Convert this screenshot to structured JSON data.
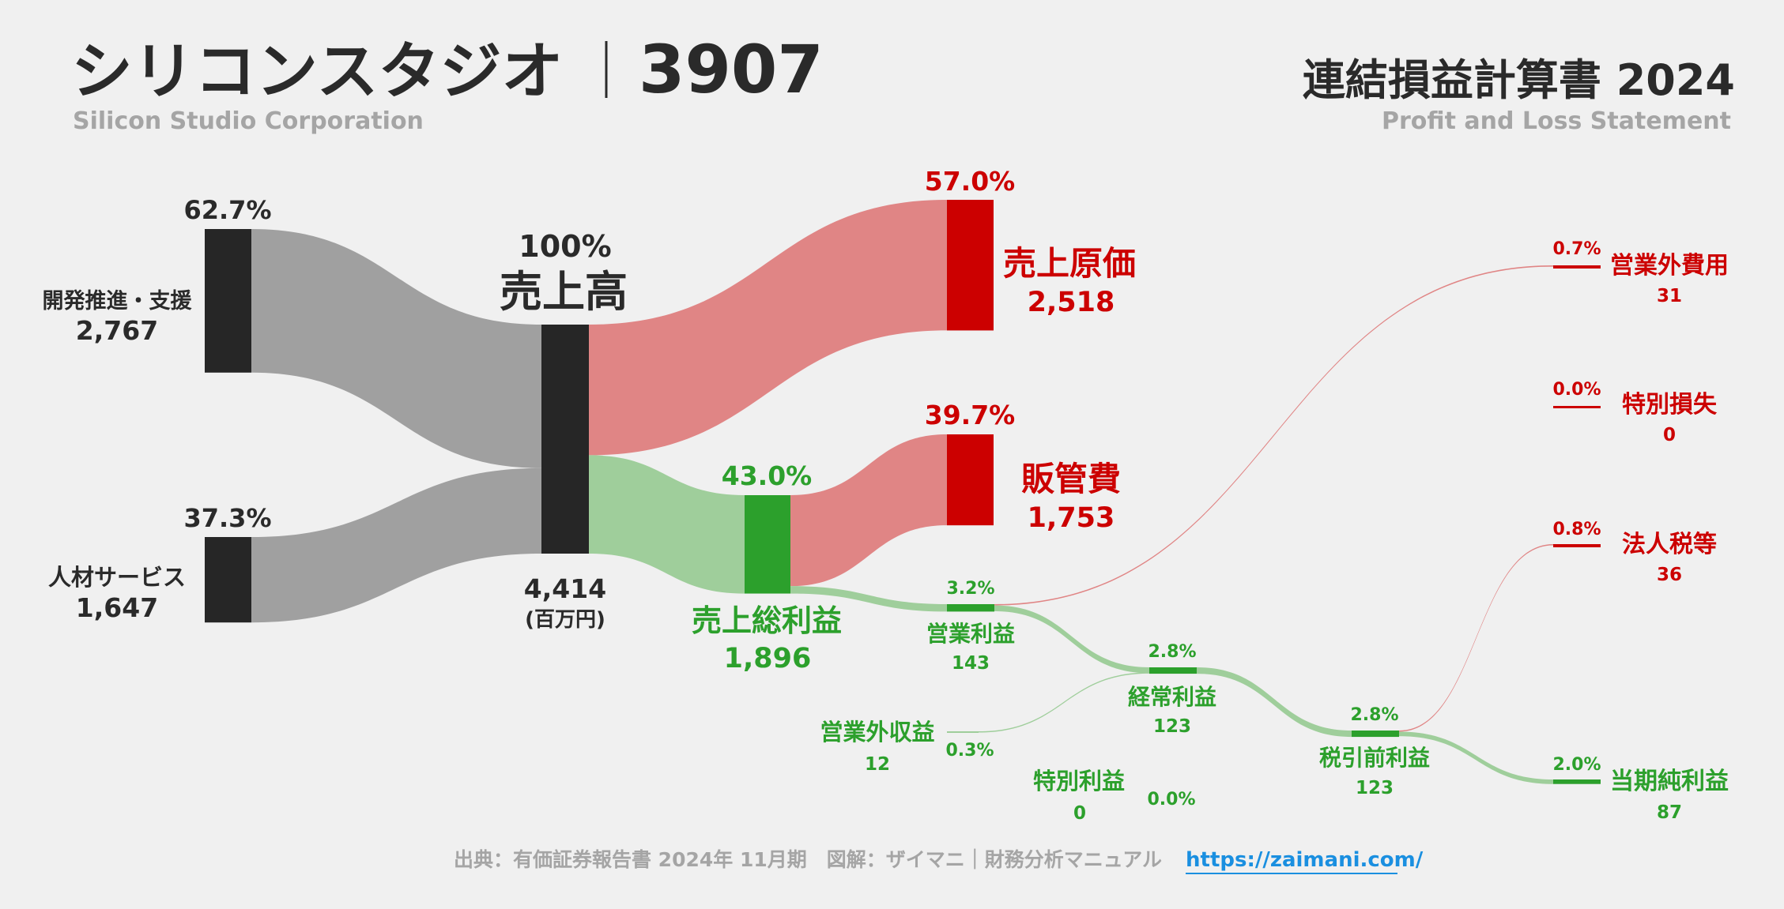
{
  "header": {
    "company_jp": "シリコンスタジオ",
    "separator": "|",
    "ticker": "3907",
    "company_en": "Silicon Studio Corporation",
    "statement_jp": "連結損益計算書 2024",
    "statement_en": "Profit and Loss Statement"
  },
  "footer": {
    "source": "出典：有価証券報告書 2024年 11月期　図解：ザイマニ｜財務分析マニュアル",
    "url": "https://zaimani.com/"
  },
  "colors": {
    "background": "#f0f0f0",
    "node_dark": "#262626",
    "flow_gray": "#a0a0a0",
    "cost_red": "#cc0000",
    "cost_flow": "#e08585",
    "profit_green": "#2ca02c",
    "profit_flow": "#9fce9b",
    "title_text": "#2a2a2a",
    "subtitle_text": "#a5a5a5",
    "link_blue": "#1a8fe0"
  },
  "chart_data": {
    "type": "sankey",
    "title": "連結損益計算書 2024",
    "unit": "(百万円)",
    "nodes": [
      {
        "id": "seg1",
        "label": "開発推進・支援",
        "value": 2767,
        "value_text": "2,767",
        "pct": "62.7%",
        "kind": "segment"
      },
      {
        "id": "seg2",
        "label": "人材サービス",
        "value": 1647,
        "value_text": "1,647",
        "pct": "37.3%",
        "kind": "segment"
      },
      {
        "id": "revenue",
        "label": "売上高",
        "value": 4414,
        "value_text": "4,414",
        "pct": "100%",
        "kind": "total"
      },
      {
        "id": "cogs",
        "label": "売上原価",
        "value": 2518,
        "value_text": "2,518",
        "pct": "57.0%",
        "kind": "cost"
      },
      {
        "id": "gross",
        "label": "売上総利益",
        "value": 1896,
        "value_text": "1,896",
        "pct": "43.0%",
        "kind": "profit"
      },
      {
        "id": "sga",
        "label": "販管費",
        "value": 1753,
        "value_text": "1,753",
        "pct": "39.7%",
        "kind": "cost"
      },
      {
        "id": "op",
        "label": "営業利益",
        "value": 143,
        "value_text": "143",
        "pct": "3.2%",
        "kind": "profit"
      },
      {
        "id": "nonop_inc",
        "label": "営業外収益",
        "value": 12,
        "value_text": "12",
        "pct": "0.3%",
        "kind": "profit"
      },
      {
        "id": "nonop_exp",
        "label": "営業外費用",
        "value": 31,
        "value_text": "31",
        "pct": "0.7%",
        "kind": "cost"
      },
      {
        "id": "ord",
        "label": "経常利益",
        "value": 123,
        "value_text": "123",
        "pct": "2.8%",
        "kind": "profit"
      },
      {
        "id": "ext_gain",
        "label": "特別利益",
        "value": 0,
        "value_text": "0",
        "pct": "0.0%",
        "kind": "profit"
      },
      {
        "id": "ext_loss",
        "label": "特別損失",
        "value": 0,
        "value_text": "0",
        "pct": "0.0%",
        "kind": "cost"
      },
      {
        "id": "pretax",
        "label": "税引前利益",
        "value": 123,
        "value_text": "123",
        "pct": "2.8%",
        "kind": "profit"
      },
      {
        "id": "tax",
        "label": "法人税等",
        "value": 36,
        "value_text": "36",
        "pct": "0.8%",
        "kind": "cost"
      },
      {
        "id": "net",
        "label": "当期純利益",
        "value": 87,
        "value_text": "87",
        "pct": "2.0%",
        "kind": "profit"
      }
    ],
    "links": [
      {
        "source": "seg1",
        "target": "revenue",
        "value": 2767
      },
      {
        "source": "seg2",
        "target": "revenue",
        "value": 1647
      },
      {
        "source": "revenue",
        "target": "cogs",
        "value": 2518
      },
      {
        "source": "revenue",
        "target": "gross",
        "value": 1896
      },
      {
        "source": "gross",
        "target": "sga",
        "value": 1753
      },
      {
        "source": "gross",
        "target": "op",
        "value": 143
      },
      {
        "source": "op",
        "target": "nonop_exp",
        "value": 31
      },
      {
        "source": "op",
        "target": "ord",
        "value": 112
      },
      {
        "source": "nonop_inc",
        "target": "ord",
        "value": 12
      },
      {
        "source": "ord",
        "target": "pretax",
        "value": 123
      },
      {
        "source": "pretax",
        "target": "tax",
        "value": 36
      },
      {
        "source": "pretax",
        "target": "net",
        "value": 87
      }
    ]
  }
}
